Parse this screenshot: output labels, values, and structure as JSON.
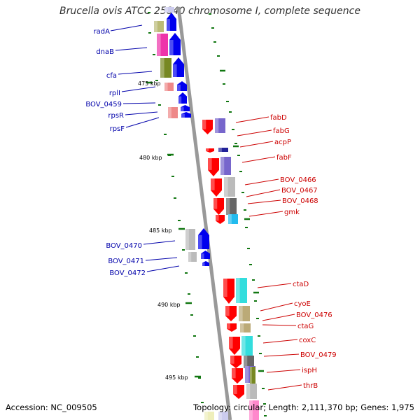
{
  "title": "Brucella ovis ATCC 25840 chromosome I, complete sequence",
  "footer": {
    "accession": "Accession: NC_009505",
    "topology": "Topology: circular; Length: 2,111,370 bp; Genes: 1,975"
  },
  "colors": {
    "backbone": "#999999",
    "forward_gene": "#ff0000",
    "reverse_gene": "#0000ee",
    "forward_label": "#cc0000",
    "reverse_label": "#0000aa",
    "tick": "#117711"
  },
  "kbp_ticks": [
    "475 kbp",
    "480 kbp",
    "485 kbp",
    "490 kbp",
    "495 kbp"
  ],
  "reverse_genes": [
    "radA",
    "dnaB",
    "cfa",
    "rplI",
    "BOV_0459",
    "rpsR",
    "rpsF",
    "BOV_0470",
    "BOV_0471",
    "BOV_0472"
  ],
  "forward_genes": [
    "fabD",
    "fabG",
    "acpP",
    "fabF",
    "BOV_0466",
    "BOV_0467",
    "BOV_0468",
    "gmk",
    "ctaD",
    "cyoE",
    "BOV_0476",
    "ctaG",
    "coxC",
    "BOV_0479",
    "ispH",
    "thrB"
  ]
}
